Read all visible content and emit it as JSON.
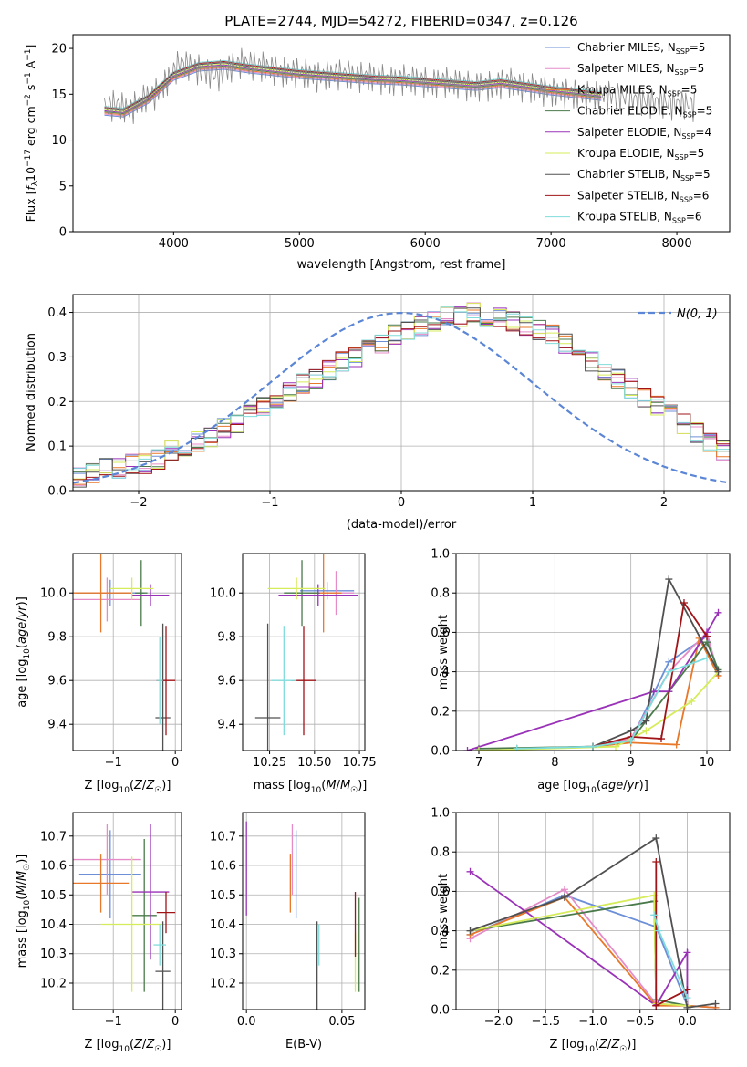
{
  "figure_title": "PLATE=2744, MJD=54272, FIBERID=0347, z=0.126",
  "series": [
    {
      "name": "Chabrier MILES, N",
      "n": "5",
      "color": "#6c8fd8"
    },
    {
      "name": "Salpeter MILES, N",
      "n": "5",
      "color": "#e58cc8"
    },
    {
      "name": "Kroupa MILES, N",
      "n": "5",
      "color": "#e8782a"
    },
    {
      "name": "Chabrier ELODIE, N",
      "n": "5",
      "color": "#4a7a4a"
    },
    {
      "name": "Salpeter ELODIE, N",
      "n": "4",
      "color": "#9a32b8"
    },
    {
      "name": "Kroupa ELODIE, N",
      "n": "5",
      "color": "#d6ec5a"
    },
    {
      "name": "Chabrier STELIB, N",
      "n": "5",
      "color": "#505050"
    },
    {
      "name": "Salpeter STELIB, N",
      "n": "6",
      "color": "#a01418"
    },
    {
      "name": "Kroupa STELIB, N",
      "n": "6",
      "color": "#80dcdc"
    }
  ],
  "chart_data": [
    {
      "id": "spectrum",
      "type": "line",
      "xlabel": "wavelength [Angstrom, rest frame]",
      "ylabel": "Flux [f_λ 10^-17 erg cm^-2 s^-1 A^-1]",
      "xlim": [
        3200,
        8420
      ],
      "ylim": [
        0,
        21.5
      ],
      "xticks": [
        4000,
        5000,
        6000,
        7000,
        8000
      ],
      "yticks": [
        0,
        5,
        10,
        15,
        20
      ],
      "data_series": {
        "name": "data",
        "x": [
          3450,
          3550,
          3650,
          3750,
          3850,
          3950,
          4050,
          4150,
          4250,
          4350,
          4450,
          4550,
          4650,
          4750,
          4850,
          4950,
          5050,
          5150,
          5250,
          5350,
          5450,
          5550,
          5650,
          5750,
          5850,
          5950,
          6050,
          6150,
          6250,
          6350,
          6450,
          6550,
          6650,
          6750,
          6850,
          6950,
          7050,
          7150,
          7250,
          7350,
          7450,
          7550,
          7650,
          7750,
          7850,
          7950,
          8050,
          8150
        ],
        "y": [
          13.5,
          14.0,
          13.2,
          14.5,
          15.0,
          16.5,
          18.5,
          18.0,
          17.5,
          17.0,
          18.0,
          18.5,
          18.2,
          18.0,
          17.5,
          17.5,
          17.3,
          17.0,
          17.2,
          17.3,
          17.0,
          17.0,
          16.8,
          16.5,
          16.8,
          16.5,
          16.3,
          16.5,
          16.3,
          16.0,
          16.0,
          16.0,
          16.5,
          16.0,
          15.8,
          15.5,
          15.3,
          15.2,
          15.0,
          15.0,
          15.0,
          14.8,
          14.5,
          14.3,
          14.2,
          14.0,
          14.0,
          13.8
        ]
      },
      "model_x": [
        3450,
        3600,
        3800,
        4000,
        4200,
        4400,
        4600,
        4800,
        5000,
        5200,
        5400,
        5600,
        5800,
        6000,
        6200,
        6400,
        6600,
        6800,
        7000,
        7200,
        7400
      ],
      "model_y": [
        13.2,
        13.0,
        14.5,
        17.0,
        18.0,
        18.2,
        17.8,
        17.5,
        17.2,
        17.0,
        16.8,
        16.6,
        16.5,
        16.3,
        16.1,
        15.9,
        16.2,
        15.8,
        15.4,
        15.1,
        14.8
      ],
      "grid": false,
      "legend": "right"
    },
    {
      "id": "residuals",
      "type": "bar",
      "xlabel": "(data-model)/error",
      "ylabel": "Normed distribution",
      "xlim": [
        -2.5,
        2.5
      ],
      "ylim": [
        0,
        0.44
      ],
      "xticks": [
        -2,
        -1,
        0,
        1,
        2
      ],
      "yticks": [
        0.0,
        0.1,
        0.2,
        0.3,
        0.4
      ],
      "legend_label": "N(0, 1)",
      "bin_edges_start": -2.5,
      "bin_width": 0.1,
      "values": [
        0.03,
        0.04,
        0.05,
        0.05,
        0.06,
        0.06,
        0.07,
        0.09,
        0.1,
        0.11,
        0.12,
        0.14,
        0.15,
        0.17,
        0.19,
        0.2,
        0.22,
        0.24,
        0.25,
        0.27,
        0.29,
        0.3,
        0.32,
        0.33,
        0.35,
        0.36,
        0.37,
        0.38,
        0.39,
        0.39,
        0.4,
        0.39,
        0.39,
        0.38,
        0.37,
        0.36,
        0.35,
        0.33,
        0.31,
        0.29,
        0.27,
        0.25,
        0.23,
        0.21,
        0.19,
        0.17,
        0.15,
        0.13,
        0.11,
        0.09
      ],
      "grid": true,
      "legend": "top-right"
    },
    {
      "id": "z-age",
      "type": "scatter",
      "xlabel": "Z [log10(Z/Z☉)]",
      "ylabel": "age  [log10(age/yr)]",
      "xlim": [
        -1.65,
        0.1
      ],
      "ylim": [
        9.28,
        10.18
      ],
      "xticks": [
        -1,
        0
      ],
      "yticks": [
        9.4,
        9.6,
        9.8,
        10.0
      ],
      "points": [
        {
          "x": -1.05,
          "y": 10.0,
          "xerr": 0.55,
          "yerr": 0.06
        },
        {
          "x": -1.1,
          "y": 9.97,
          "xerr": 0.55,
          "yerr": 0.1
        },
        {
          "x": -1.2,
          "y": 10.0,
          "xerr": 0.5,
          "yerr": 0.18
        },
        {
          "x": -0.55,
          "y": 10.0,
          "xerr": 0.1,
          "yerr": 0.15
        },
        {
          "x": -0.4,
          "y": 9.99,
          "xerr": 0.3,
          "yerr": 0.05
        },
        {
          "x": -0.7,
          "y": 10.02,
          "xerr": 0.35,
          "yerr": 0.05
        },
        {
          "x": -0.2,
          "y": 9.43,
          "xerr": 0.12,
          "yerr": 0.43
        },
        {
          "x": -0.15,
          "y": 9.6,
          "xerr": 0.15,
          "yerr": 0.25
        },
        {
          "x": -0.25,
          "y": 9.6,
          "xerr": 0.05,
          "yerr": 0.2
        }
      ],
      "grid": true
    },
    {
      "id": "mass-age",
      "type": "scatter",
      "xlabel": "mass [log10(M/M☉)]",
      "ylabel": "",
      "xlim": [
        10.1,
        10.78
      ],
      "ylim": [
        9.28,
        10.18
      ],
      "xticks": [
        10.25,
        10.5,
        10.75
      ],
      "yticks": [
        9.4,
        9.6,
        9.8,
        10.0
      ],
      "points": [
        {
          "x": 10.57,
          "y": 10.01,
          "xerr": 0.15,
          "yerr": 0.04
        },
        {
          "x": 10.62,
          "y": 10.0,
          "xerr": 0.1,
          "yerr": 0.1
        },
        {
          "x": 10.55,
          "y": 10.0,
          "xerr": 0.1,
          "yerr": 0.18
        },
        {
          "x": 10.43,
          "y": 10.0,
          "xerr": 0.1,
          "yerr": 0.15
        },
        {
          "x": 10.52,
          "y": 9.99,
          "xerr": 0.22,
          "yerr": 0.05
        },
        {
          "x": 10.4,
          "y": 10.02,
          "xerr": 0.16,
          "yerr": 0.05
        },
        {
          "x": 10.24,
          "y": 9.43,
          "xerr": 0.07,
          "yerr": 0.43
        },
        {
          "x": 10.44,
          "y": 9.6,
          "xerr": 0.07,
          "yerr": 0.25
        },
        {
          "x": 10.33,
          "y": 9.6,
          "xerr": 0.07,
          "yerr": 0.25
        }
      ],
      "grid": true
    },
    {
      "id": "age-weight",
      "type": "line",
      "xlabel": "age  [log10(age/yr)]",
      "ylabel": "mass weight",
      "xlim": [
        6.7,
        10.3
      ],
      "ylim": [
        0,
        1.0
      ],
      "xticks": [
        7,
        8,
        9,
        10
      ],
      "yticks": [
        0.0,
        0.2,
        0.4,
        0.6,
        0.8,
        1.0
      ],
      "lines": [
        {
          "x": [
            7.5,
            8.5,
            9.0,
            9.5,
            10.0,
            10.15
          ],
          "y": [
            0.01,
            0.02,
            0.05,
            0.45,
            0.58,
            0.4
          ]
        },
        {
          "x": [
            7.5,
            8.5,
            9.0,
            9.5,
            10.0,
            10.15
          ],
          "y": [
            0.01,
            0.02,
            0.06,
            0.4,
            0.6,
            0.38
          ]
        },
        {
          "x": [
            7.5,
            8.5,
            9.0,
            9.6,
            9.9,
            10.15
          ],
          "y": [
            0.01,
            0.02,
            0.04,
            0.03,
            0.57,
            0.38
          ]
        },
        {
          "x": [
            7.0,
            8.5,
            9.0,
            9.5,
            10.0,
            10.15
          ],
          "y": [
            0.01,
            0.02,
            0.05,
            0.3,
            0.55,
            0.41
          ]
        },
        {
          "x": [
            6.85,
            9.3,
            9.5,
            10.0,
            10.15
          ],
          "y": [
            0.0,
            0.3,
            0.3,
            0.6,
            0.7
          ]
        },
        {
          "x": [
            7.0,
            8.8,
            9.2,
            9.8,
            10.15
          ],
          "y": [
            0.0,
            0.02,
            0.1,
            0.25,
            0.4
          ]
        },
        {
          "x": [
            8.5,
            9.0,
            9.2,
            9.5,
            10.15
          ],
          "y": [
            0.02,
            0.1,
            0.15,
            0.87,
            0.4
          ]
        },
        {
          "x": [
            8.5,
            9.0,
            9.4,
            9.7,
            10.0
          ],
          "y": [
            0.02,
            0.07,
            0.06,
            0.75,
            0.58
          ]
        },
        {
          "x": [
            7.5,
            8.5,
            9.0,
            9.5,
            10.0
          ],
          "y": [
            0.01,
            0.02,
            0.05,
            0.4,
            0.47
          ]
        }
      ],
      "grid": true
    },
    {
      "id": "z-mass",
      "type": "scatter",
      "xlabel": "Z [log10(Z/Z☉)]",
      "ylabel": "mass [log10(M/M☉)]",
      "xlim": [
        -1.65,
        0.1
      ],
      "ylim": [
        10.11,
        10.78
      ],
      "xticks": [
        -1,
        0
      ],
      "yticks": [
        10.2,
        10.3,
        10.4,
        10.5,
        10.6,
        10.7
      ],
      "points": [
        {
          "x": -1.05,
          "y": 10.57,
          "xerr": 0.5,
          "yerr": 0.15
        },
        {
          "x": -1.1,
          "y": 10.62,
          "xerr": 0.55,
          "yerr": 0.12
        },
        {
          "x": -1.2,
          "y": 10.54,
          "xerr": 0.45,
          "yerr": 0.1
        },
        {
          "x": -0.5,
          "y": 10.43,
          "xerr": 0.2,
          "yerr": 0.26
        },
        {
          "x": -0.4,
          "y": 10.51,
          "xerr": 0.3,
          "yerr": 0.23
        },
        {
          "x": -0.7,
          "y": 10.4,
          "xerr": 0.5,
          "yerr": 0.23
        },
        {
          "x": -0.2,
          "y": 10.24,
          "xerr": 0.12,
          "yerr": 0.17
        },
        {
          "x": -0.15,
          "y": 10.44,
          "xerr": 0.15,
          "yerr": 0.07
        },
        {
          "x": -0.25,
          "y": 10.33,
          "xerr": 0.1,
          "yerr": 0.07
        }
      ],
      "grid": true
    },
    {
      "id": "ebv-mass",
      "type": "scatter",
      "xlabel": "E(B-V)",
      "ylabel": "",
      "xlim": [
        -0.002,
        0.062
      ],
      "ylim": [
        10.11,
        10.78
      ],
      "xticks": [
        0.0,
        0.05
      ],
      "yticks": [
        10.2,
        10.3,
        10.4,
        10.5,
        10.6,
        10.7
      ],
      "points": [
        {
          "x": 0.026,
          "y": 10.57,
          "xerr": 0,
          "yerr": 0.15
        },
        {
          "x": 0.024,
          "y": 10.62,
          "xerr": 0,
          "yerr": 0.12
        },
        {
          "x": 0.023,
          "y": 10.54,
          "xerr": 0,
          "yerr": 0.1
        },
        {
          "x": 0.059,
          "y": 10.33,
          "xerr": 0,
          "yerr": 0.16
        },
        {
          "x": 0.0,
          "y": 10.59,
          "xerr": 0,
          "yerr": 0.16
        },
        {
          "x": 0.057,
          "y": 10.27,
          "xerr": 0,
          "yerr": 0.1
        },
        {
          "x": 0.037,
          "y": 10.24,
          "xerr": 0,
          "yerr": 0.17
        },
        {
          "x": 0.057,
          "y": 10.4,
          "xerr": 0,
          "yerr": 0.11
        },
        {
          "x": 0.038,
          "y": 10.33,
          "xerr": 0,
          "yerr": 0.07
        }
      ],
      "grid": true
    },
    {
      "id": "z-weight",
      "type": "line",
      "xlabel": "Z [log10(Z/Z☉)]",
      "ylabel": "mass weight",
      "xlim": [
        -2.45,
        0.45
      ],
      "ylim": [
        0,
        1.0
      ],
      "xticks": [
        -2.0,
        -1.5,
        -1.0,
        -0.5,
        0.0
      ],
      "yticks": [
        0.0,
        0.2,
        0.4,
        0.6,
        0.8,
        1.0
      ],
      "lines": [
        {
          "x": [
            -2.3,
            -1.3,
            -0.33,
            0.0,
            0.3
          ],
          "y": [
            0.38,
            0.58,
            0.42,
            0.02,
            0.01
          ]
        },
        {
          "x": [
            -2.3,
            -1.3,
            -0.33,
            0.0,
            0.3
          ],
          "y": [
            0.36,
            0.61,
            0.03,
            0.02,
            0.01
          ]
        },
        {
          "x": [
            -2.3,
            -1.3,
            -0.33,
            0.0,
            0.3
          ],
          "y": [
            0.38,
            0.57,
            0.02,
            0.02,
            0.01
          ]
        },
        {
          "x": [
            -2.3,
            -0.35,
            -0.33,
            0.0
          ],
          "y": [
            0.4,
            0.55,
            0.05,
            0.02
          ]
        },
        {
          "x": [
            -2.3,
            -0.33,
            0.0,
            0.0
          ],
          "y": [
            0.7,
            0.02,
            0.29,
            0.02
          ]
        },
        {
          "x": [
            -2.3,
            -0.35,
            -0.33,
            0.0
          ],
          "y": [
            0.4,
            0.58,
            0.03,
            0.02
          ]
        },
        {
          "x": [
            -2.3,
            -1.3,
            -0.33,
            0.0,
            0.3
          ],
          "y": [
            0.4,
            0.57,
            0.87,
            0.01,
            0.03
          ]
        },
        {
          "x": [
            -0.33,
            -0.33,
            0.0
          ],
          "y": [
            0.75,
            0.02,
            0.1
          ]
        },
        {
          "x": [
            -0.35,
            -0.3,
            0.0
          ],
          "y": [
            0.48,
            0.4,
            0.06
          ]
        }
      ],
      "grid": true
    }
  ]
}
